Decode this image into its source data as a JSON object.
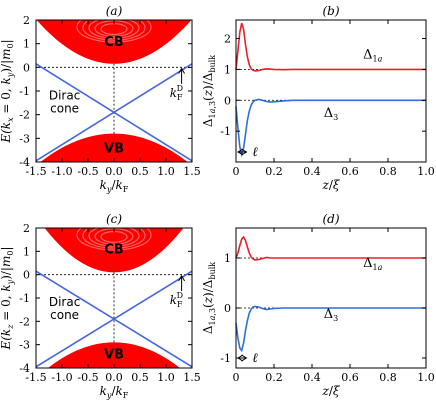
{
  "chart_data": [
    {
      "type": "area",
      "panel": "(a)",
      "ylabel": "E(k_x = 0, k_y)/|m_0|",
      "xlabel": "k_y/k_F",
      "xlim": [
        -1.5,
        1.5
      ],
      "ylim": [
        -4,
        2
      ],
      "xticks": [
        "-1.5",
        "-1.0",
        "-0.5",
        "0.0",
        "0.5",
        "1.0",
        "1.5"
      ],
      "yticks": [
        "-4",
        "-3",
        "-2",
        "-1",
        "0",
        "1",
        "2"
      ],
      "bands": {
        "cb_min_at_0": 0.15,
        "vb_max_at_0": -2.8,
        "dirac_point": [
          0,
          -1.9
        ],
        "dirac_crossing_kF": 1.45
      },
      "dirac_lines": [
        {
          "x": [
            -1.5,
            1.5
          ],
          "y": [
            0.15,
            -4.0
          ]
        },
        {
          "x": [
            -1.5,
            1.5
          ],
          "y": [
            -4.0,
            0.15
          ]
        }
      ],
      "labels": {
        "cb": "CB",
        "vb": "VB",
        "dirac": "Dirac",
        "cone": "cone",
        "kf": "k_F^D"
      },
      "colors": {
        "band": "#ff0000",
        "dirac": "#4466dd"
      }
    },
    {
      "type": "line",
      "panel": "(b)",
      "xlabel": "z/ξ",
      "ylabel": "Δ_{1a,3}(z)/Δ_bulk",
      "xlim": [
        0,
        1.0
      ],
      "ylim": [
        -2,
        2.6
      ],
      "xticks": [
        "0",
        "0.2",
        "0.4",
        "0.6",
        "0.8",
        "1.0"
      ],
      "yticks": [
        "-1",
        "0",
        "1",
        "2"
      ],
      "series": [
        {
          "name": "Δ_1a",
          "color": "#e8202a",
          "x": [
            0,
            0.01,
            0.02,
            0.03,
            0.04,
            0.05,
            0.06,
            0.07,
            0.08,
            0.09,
            0.1,
            0.12,
            0.14,
            0.16,
            0.18,
            0.2,
            0.25,
            0.3,
            0.4,
            0.5,
            0.6,
            0.8,
            1.0
          ],
          "y": [
            1.0,
            1.6,
            2.2,
            2.5,
            2.3,
            1.8,
            1.4,
            1.15,
            1.02,
            0.97,
            0.95,
            0.96,
            1.0,
            1.02,
            1.01,
            1.0,
            0.99,
            1.0,
            1.0,
            1.0,
            1.0,
            1.0,
            1.0
          ]
        },
        {
          "name": "Δ_3",
          "color": "#2f6fd6",
          "x": [
            0,
            0.01,
            0.02,
            0.03,
            0.04,
            0.05,
            0.06,
            0.07,
            0.08,
            0.09,
            0.1,
            0.12,
            0.14,
            0.16,
            0.18,
            0.2,
            0.25,
            0.3,
            0.4,
            0.5,
            0.6,
            0.8,
            1.0
          ],
          "y": [
            -0.2,
            -0.9,
            -1.5,
            -1.75,
            -1.55,
            -1.1,
            -0.65,
            -0.35,
            -0.15,
            -0.05,
            0.0,
            0.03,
            0.0,
            -0.04,
            -0.06,
            -0.05,
            -0.02,
            0.0,
            0.0,
            0.0,
            0.0,
            0.0,
            0.0
          ]
        }
      ],
      "annotation": "ℓ",
      "series_labels": {
        "s1": "Δ_1a",
        "s2": "Δ_3"
      }
    },
    {
      "type": "area",
      "panel": "(c)",
      "ylabel": "E(k_z = 0, k_y)/|m_0|",
      "xlabel": "k_y/k_F",
      "xlim": [
        -1.5,
        1.5
      ],
      "ylim": [
        -4,
        2
      ],
      "xticks": [
        "-1.5",
        "-1.0",
        "-0.5",
        "0.0",
        "0.5",
        "1.0",
        "1.5"
      ],
      "yticks": [
        "-4",
        "-3",
        "-2",
        "-1",
        "0",
        "1",
        "2"
      ],
      "bands": {
        "cb_min_at_0": 0.1,
        "vb_max_at_0": -2.9,
        "dirac_point": [
          0,
          -1.9
        ],
        "dirac_crossing_kF": 1.3
      },
      "labels": {
        "cb": "CB",
        "vb": "VB",
        "dirac": "Dirac",
        "cone": "cone",
        "kf": "k_F^D"
      },
      "colors": {
        "band": "#ff0000",
        "dirac": "#4466dd"
      }
    },
    {
      "type": "line",
      "panel": "(d)",
      "xlabel": "z/ξ",
      "ylabel": "Δ_{1a,3}(z)/Δ_bulk",
      "xlim": [
        0,
        1.0
      ],
      "ylim": [
        -1.2,
        1.6
      ],
      "xticks": [
        "0",
        "0.2",
        "0.4",
        "0.6",
        "0.8",
        "1.0"
      ],
      "yticks": [
        "-1",
        "0",
        "1"
      ],
      "series": [
        {
          "name": "Δ_1a",
          "color": "#e8202a",
          "x": [
            0,
            0.01,
            0.02,
            0.03,
            0.04,
            0.05,
            0.06,
            0.07,
            0.08,
            0.09,
            0.1,
            0.12,
            0.14,
            0.16,
            0.18,
            0.2,
            0.25,
            0.3,
            0.4,
            0.6,
            0.8,
            1.0
          ],
          "y": [
            1.0,
            1.1,
            1.25,
            1.38,
            1.42,
            1.35,
            1.22,
            1.1,
            1.02,
            0.98,
            0.96,
            0.97,
            0.99,
            1.01,
            1.0,
            1.0,
            1.0,
            1.0,
            1.0,
            1.0,
            1.0,
            1.0
          ]
        },
        {
          "name": "Δ_3",
          "color": "#2f6fd6",
          "x": [
            0,
            0.01,
            0.02,
            0.03,
            0.04,
            0.05,
            0.06,
            0.07,
            0.08,
            0.09,
            0.1,
            0.12,
            0.14,
            0.16,
            0.18,
            0.2,
            0.25,
            0.3,
            0.4,
            0.6,
            0.8,
            1.0
          ],
          "y": [
            -0.3,
            -0.6,
            -0.8,
            -0.85,
            -0.7,
            -0.45,
            -0.25,
            -0.1,
            -0.02,
            0.02,
            0.03,
            0.02,
            -0.01,
            -0.03,
            -0.02,
            -0.01,
            0.0,
            0.0,
            0.0,
            0.0,
            0.0,
            0.0
          ]
        }
      ],
      "annotation": "ℓ",
      "series_labels": {
        "s1": "Δ_1a",
        "s2": "Δ_3"
      }
    }
  ]
}
